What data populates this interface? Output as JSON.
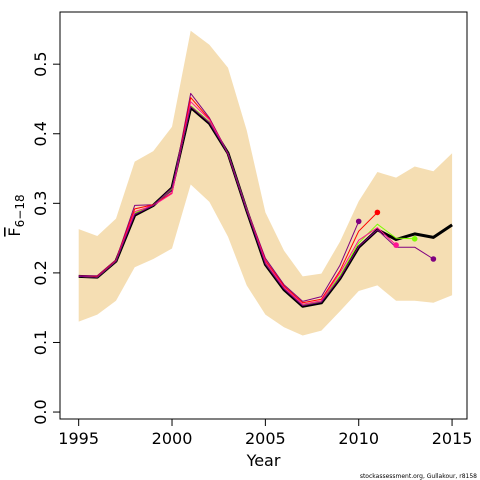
{
  "chart_data": {
    "type": "line",
    "xlabel": "Year",
    "ylabel": {
      "main": "F",
      "sub": "6−18"
    },
    "xlim": [
      1994,
      2015.8
    ],
    "ylim": [
      -0.01,
      0.575
    ],
    "xticks": [
      1995,
      2000,
      2005,
      2010,
      2015
    ],
    "yticks": [
      "0.0",
      "0.1",
      "0.2",
      "0.3",
      "0.4",
      "0.5"
    ],
    "grid": false,
    "legend": "none",
    "credit": "stockassessment.org, Gullakour, r8158",
    "colors": {
      "band": "#f5deb3",
      "main": "#000000",
      "retro": [
        "#800080",
        "#ff0000",
        "#7cfc00",
        "#ff1493",
        "#800080"
      ]
    },
    "confidence_band": {
      "x": [
        1995,
        1996,
        1997,
        1998,
        1999,
        2000,
        2001,
        2002,
        2003,
        2004,
        2005,
        2006,
        2007,
        2008,
        2009,
        2010,
        2011,
        2012,
        2013,
        2014,
        2015
      ],
      "upper": [
        0.263,
        0.253,
        0.278,
        0.36,
        0.375,
        0.41,
        0.548,
        0.528,
        0.495,
        0.405,
        0.287,
        0.232,
        0.195,
        0.199,
        0.245,
        0.303,
        0.345,
        0.337,
        0.353,
        0.346,
        0.372
      ],
      "lower": [
        0.13,
        0.14,
        0.16,
        0.208,
        0.22,
        0.235,
        0.327,
        0.302,
        0.252,
        0.182,
        0.14,
        0.122,
        0.11,
        0.117,
        0.145,
        0.174,
        0.182,
        0.16,
        0.16,
        0.157,
        0.168
      ]
    },
    "series": [
      {
        "x": [
          1995,
          1996,
          1997,
          1998,
          1999,
          2000,
          2001,
          2002,
          2003,
          2004,
          2005,
          2006,
          2007,
          2008,
          2009,
          2010,
          2011,
          2012,
          2013,
          2014,
          2015
        ],
        "values": [
          0.195,
          0.194,
          0.217,
          0.283,
          0.297,
          0.322,
          0.438,
          0.415,
          0.372,
          0.29,
          0.212,
          0.176,
          0.152,
          0.157,
          0.192,
          0.237,
          0.262,
          0.248,
          0.256,
          0.251,
          0.269
        ],
        "role": "main"
      },
      {
        "x": [
          1995,
          1996,
          1997,
          1998,
          1999,
          2000,
          2001,
          2002,
          2003,
          2004,
          2005,
          2006,
          2007,
          2008,
          2009,
          2010
        ],
        "values": [
          0.196,
          0.196,
          0.219,
          0.297,
          0.298,
          0.318,
          0.458,
          0.423,
          0.372,
          0.293,
          0.221,
          0.183,
          0.159,
          0.166,
          0.211,
          0.274
        ],
        "role": "retro"
      },
      {
        "x": [
          1995,
          1996,
          1997,
          1998,
          1999,
          2000,
          2001,
          2002,
          2003,
          2004,
          2005,
          2006,
          2007,
          2008,
          2009,
          2010,
          2011
        ],
        "values": [
          0.195,
          0.195,
          0.218,
          0.292,
          0.298,
          0.315,
          0.452,
          0.421,
          0.371,
          0.291,
          0.218,
          0.181,
          0.157,
          0.162,
          0.203,
          0.26,
          0.287
        ],
        "role": "retro"
      },
      {
        "x": [
          1995,
          1996,
          1997,
          1998,
          1999,
          2000,
          2001,
          2002,
          2003,
          2004,
          2005,
          2006,
          2007,
          2008,
          2009,
          2010,
          2011,
          2012,
          2013
        ],
        "values": [
          0.195,
          0.194,
          0.217,
          0.286,
          0.297,
          0.321,
          0.44,
          0.417,
          0.372,
          0.291,
          0.214,
          0.178,
          0.154,
          0.159,
          0.196,
          0.243,
          0.27,
          0.25,
          0.249
        ],
        "role": "retro"
      },
      {
        "x": [
          1995,
          1996,
          1997,
          1998,
          1999,
          2000,
          2001,
          2002,
          2003,
          2004,
          2005,
          2006,
          2007,
          2008,
          2009,
          2010,
          2011,
          2012
        ],
        "values": [
          0.195,
          0.194,
          0.217,
          0.288,
          0.297,
          0.314,
          0.446,
          0.42,
          0.371,
          0.29,
          0.216,
          0.179,
          0.155,
          0.16,
          0.2,
          0.247,
          0.265,
          0.24
        ],
        "role": "retro"
      },
      {
        "x": [
          1995,
          1996,
          1997,
          1998,
          1999,
          2000,
          2001,
          2002,
          2003,
          2004,
          2005,
          2006,
          2007,
          2008,
          2009,
          2010,
          2011,
          2012,
          2013,
          2014
        ],
        "values": [
          0.195,
          0.194,
          0.217,
          0.284,
          0.297,
          0.322,
          0.439,
          0.416,
          0.372,
          0.29,
          0.213,
          0.177,
          0.153,
          0.158,
          0.193,
          0.238,
          0.262,
          0.237,
          0.237,
          0.22
        ],
        "role": "retro"
      }
    ]
  }
}
